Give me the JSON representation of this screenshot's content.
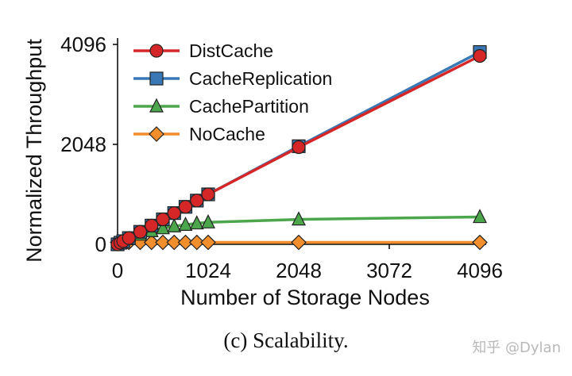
{
  "chart_data": {
    "type": "line",
    "xlabel": "Number of Storage Nodes",
    "ylabel": "Normalized Throughput",
    "xlim": [
      0,
      4096
    ],
    "ylim": [
      0,
      4096
    ],
    "xticks": [
      0,
      1024,
      2048,
      3072,
      4096
    ],
    "yticks": [
      0,
      2048,
      4096
    ],
    "grid": false,
    "legend": "top-left",
    "series": [
      {
        "name": "DistCache",
        "color": "#d62728",
        "marker": "circle",
        "x": [
          0,
          32,
          64,
          128,
          256,
          384,
          512,
          640,
          768,
          896,
          1024,
          2048,
          4096
        ],
        "y": [
          0,
          32,
          64,
          128,
          256,
          384,
          512,
          640,
          768,
          896,
          1024,
          1990,
          3860
        ]
      },
      {
        "name": "CacheReplication",
        "color": "#3a78b5",
        "marker": "square",
        "x": [
          0,
          32,
          64,
          128,
          256,
          384,
          512,
          640,
          768,
          896,
          1024,
          2048,
          4096
        ],
        "y": [
          0,
          32,
          64,
          128,
          256,
          384,
          512,
          640,
          768,
          896,
          1024,
          2010,
          3940
        ]
      },
      {
        "name": "CachePartition",
        "color": "#4ca64c",
        "marker": "triangle",
        "x": [
          0,
          32,
          64,
          128,
          256,
          384,
          512,
          640,
          768,
          896,
          1024,
          2048,
          4096
        ],
        "y": [
          0,
          30,
          60,
          110,
          200,
          270,
          330,
          370,
          400,
          430,
          450,
          510,
          560
        ]
      },
      {
        "name": "NoCache",
        "color": "#f28e2b",
        "marker": "diamond",
        "x": [
          0,
          32,
          64,
          128,
          256,
          384,
          512,
          640,
          768,
          896,
          1024,
          2048,
          4096
        ],
        "y": [
          40,
          40,
          40,
          40,
          40,
          40,
          40,
          40,
          40,
          40,
          40,
          40,
          40
        ]
      }
    ]
  },
  "caption": "(c) Scalability.",
  "watermark": "知乎 @Dylan"
}
